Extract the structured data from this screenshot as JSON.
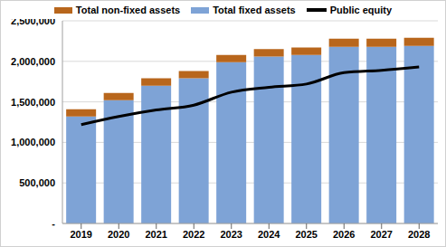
{
  "chart_data": {
    "type": "bar",
    "stacked": true,
    "grid": true,
    "legend": "top",
    "categories": [
      "2019",
      "2020",
      "2021",
      "2022",
      "2023",
      "2024",
      "2025",
      "2026",
      "2027",
      "2028"
    ],
    "series": [
      {
        "name": "Total non-fixed assets",
        "type": "bar",
        "color": "#b8661c",
        "values": [
          90000,
          90000,
          90000,
          90000,
          90000,
          90000,
          90000,
          100000,
          100000,
          100000
        ]
      },
      {
        "name": "Total fixed assets",
        "type": "bar",
        "color": "#7ea3d6",
        "values": [
          1320000,
          1520000,
          1700000,
          1790000,
          1990000,
          2060000,
          2080000,
          2180000,
          2180000,
          2190000
        ]
      },
      {
        "name": "Public equity",
        "type": "line",
        "color": "#000000",
        "values": [
          1220000,
          1320000,
          1400000,
          1460000,
          1620000,
          1680000,
          1720000,
          1860000,
          1890000,
          1930000
        ]
      }
    ],
    "ylim": [
      0,
      2500000
    ],
    "yticks": [
      {
        "value": 0,
        "label": "-"
      },
      {
        "value": 500000,
        "label": "500,000"
      },
      {
        "value": 1000000,
        "label": "1,000,000"
      },
      {
        "value": 1500000,
        "label": "1,500,000"
      },
      {
        "value": 2000000,
        "label": "2,000,000"
      },
      {
        "value": 2500000,
        "label": "2,500,000"
      }
    ]
  }
}
